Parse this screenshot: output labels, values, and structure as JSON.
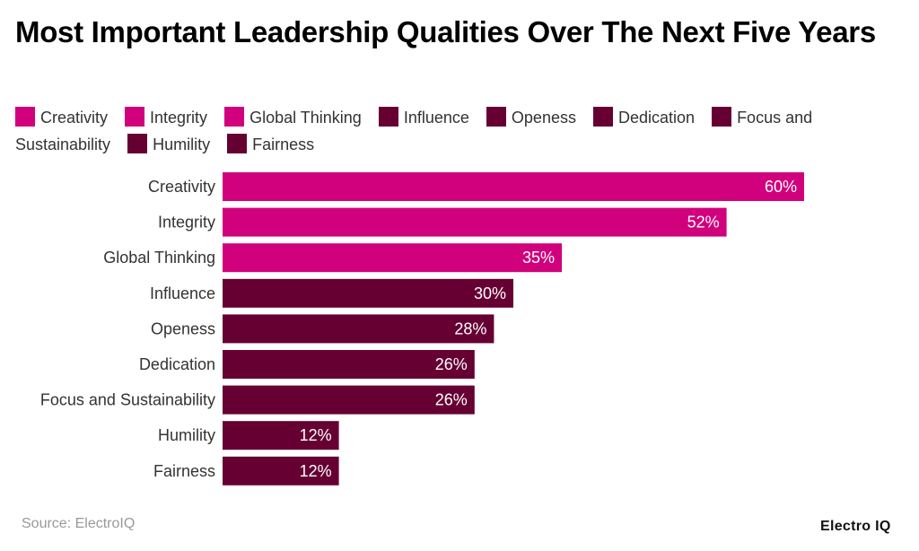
{
  "chart_data": {
    "type": "bar",
    "orientation": "horizontal",
    "title": "Most Important Leadership Qualities Over The Next Five Years",
    "categories": [
      "Creativity",
      "Integrity",
      "Global Thinking",
      "Influence",
      "Openess",
      "Dedication",
      "Focus and Sustainability",
      "Humility",
      "Fairness"
    ],
    "values": [
      60,
      52,
      35,
      30,
      28,
      26,
      26,
      12,
      12
    ],
    "value_suffix": "%",
    "colors": [
      "#D1007C",
      "#D1007C",
      "#D1007C",
      "#660033",
      "#660033",
      "#660033",
      "#660033",
      "#660033",
      "#660033"
    ],
    "legend": [
      "Creativity",
      "Integrity",
      "Global Thinking",
      "Influence",
      "Openess",
      "Dedication",
      "Focus and Sustainability",
      "Humility",
      "Fairness"
    ],
    "legend_position": "top",
    "grid": false,
    "xlim": [
      0,
      60
    ]
  },
  "source": "Source: ElectroIQ",
  "logo": "Electro IQ"
}
